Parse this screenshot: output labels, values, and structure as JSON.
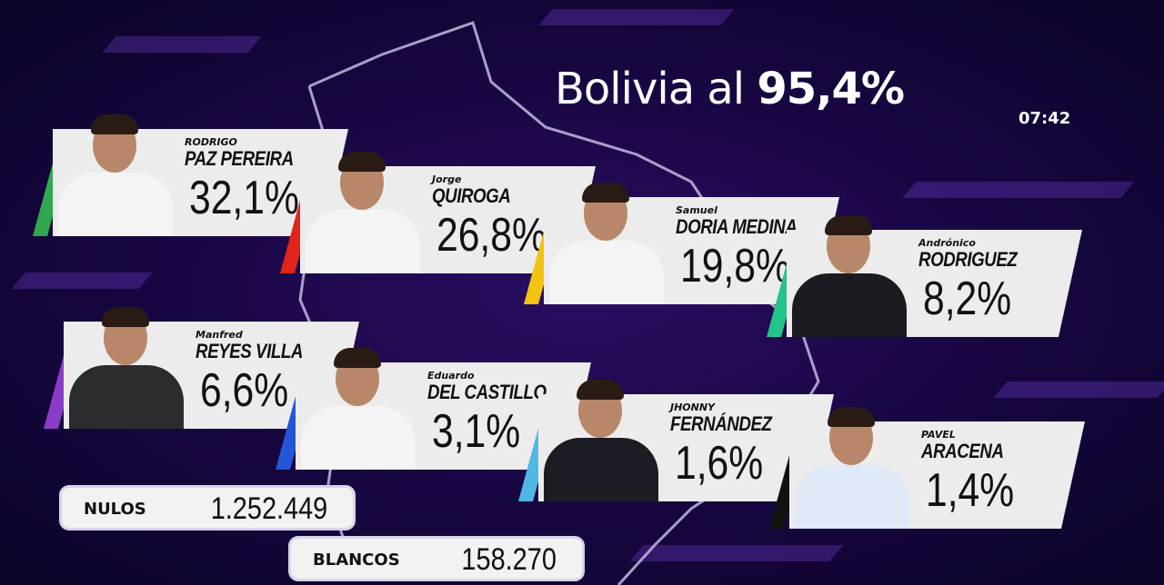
{
  "header": {
    "title_prefix": "Bolivia al",
    "title_value": "95,4%",
    "time": "07:42"
  },
  "candidates": [
    {
      "first": "RODRIGO",
      "last": "PAZ PEREIRA",
      "pct": "32,1%",
      "color": "#2fa84f",
      "suit": "#f4f4f4"
    },
    {
      "first": "Jorge",
      "last": "QUIROGA",
      "pct": "26,8%",
      "color": "#e0241b",
      "suit": "#f4f4f4"
    },
    {
      "first": "Samuel",
      "last": "DORIA MEDINA",
      "pct": "19,8%",
      "color": "#f2c40f",
      "suit": "#f4f4f4"
    },
    {
      "first": "Andrónico",
      "last": "RODRIGUEZ",
      "pct": "8,2%",
      "color": "#23c48a",
      "suit": "#1b1b22"
    },
    {
      "first": "Manfred",
      "last": "REYES VILLA",
      "pct": "6,6%",
      "color": "#8a3cc8",
      "suit": "#2b2b30"
    },
    {
      "first": "Eduardo",
      "last": "DEL CASTILLO",
      "pct": "3,1%",
      "color": "#2456d8",
      "suit": "#f4f4f4"
    },
    {
      "first": "JHONNY",
      "last": "FERNÁNDEZ",
      "pct": "1,6%",
      "color": "#4fb8e6",
      "suit": "#1c1c24"
    },
    {
      "first": "PAVEL",
      "last": "ARACENA",
      "pct": "1,4%",
      "color": "#111111",
      "suit": "#dfe9f7"
    }
  ],
  "totals": {
    "nulos_label": "NULOS",
    "nulos": "1.252.449",
    "blancos_label": "BLANCOS",
    "blancos": "158.270"
  }
}
